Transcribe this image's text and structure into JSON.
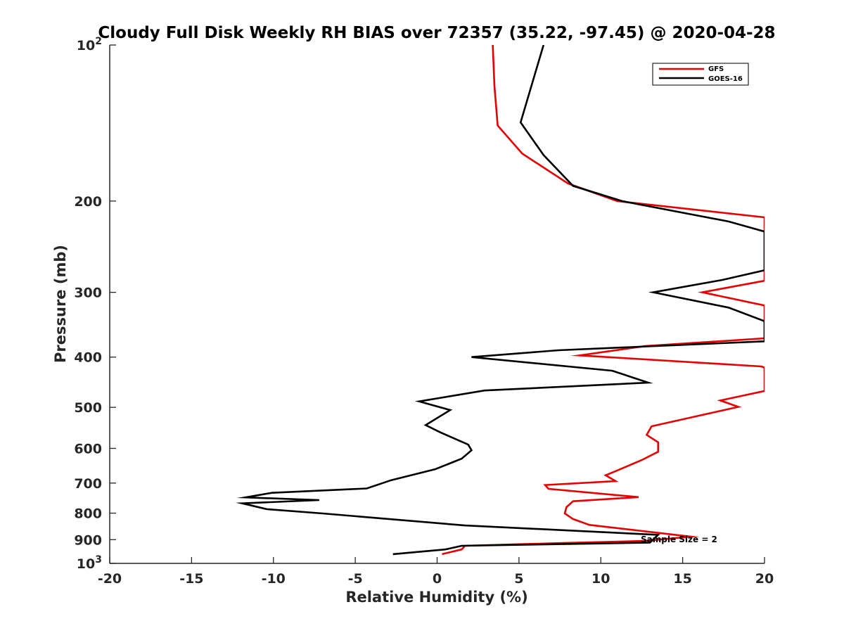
{
  "chart_data": {
    "type": "line",
    "title": "Cloudy Full Disk Weekly RH BIAS over 72357 (35.22, -97.45) @ 2020-04-28",
    "xlabel": "Relative Humidity (%)",
    "ylabel": "Pressure (mb)",
    "xlim": [
      -20,
      20
    ],
    "ylim": [
      100,
      1000
    ],
    "y_scale": "log",
    "y_reversed": true,
    "x_ticks": [
      "-20",
      "-15",
      "-10",
      "-5",
      "0",
      "5",
      "10",
      "15",
      "20"
    ],
    "y_ticks": [
      {
        "value": 100,
        "base": "10",
        "exp": "2"
      },
      {
        "value": 200,
        "base": "200",
        "exp": ""
      },
      {
        "value": 300,
        "base": "300",
        "exp": ""
      },
      {
        "value": 400,
        "base": "400",
        "exp": ""
      },
      {
        "value": 500,
        "base": "500",
        "exp": ""
      },
      {
        "value": 600,
        "base": "600",
        "exp": ""
      },
      {
        "value": 700,
        "base": "700",
        "exp": ""
      },
      {
        "value": 800,
        "base": "800",
        "exp": ""
      },
      {
        "value": 900,
        "base": "900",
        "exp": ""
      },
      {
        "value": 1000,
        "base": "10",
        "exp": "3"
      }
    ],
    "grid": false,
    "legend_position": "top-right",
    "annotation": "Sample Size = 2",
    "series": [
      {
        "name": "GFS",
        "color": "#e60000",
        "points": [
          [
            3.4,
            100
          ],
          [
            3.5,
            120
          ],
          [
            3.7,
            143
          ],
          [
            5.2,
            162
          ],
          [
            8.0,
            185
          ],
          [
            11.0,
            200
          ],
          [
            20.0,
            215
          ],
          [
            20.0,
            285
          ],
          [
            16.2,
            300
          ],
          [
            20.0,
            318
          ],
          [
            20.0,
            368
          ],
          [
            12.7,
            381
          ],
          [
            8.7,
            397
          ],
          [
            19.8,
            417
          ],
          [
            20.0,
            419
          ],
          [
            20.0,
            465
          ],
          [
            17.3,
            485
          ],
          [
            18.4,
            499
          ],
          [
            13.1,
            544
          ],
          [
            12.8,
            565
          ],
          [
            13.5,
            584
          ],
          [
            13.5,
            609
          ],
          [
            12.5,
            632
          ],
          [
            10.9,
            664
          ],
          [
            10.3,
            676
          ],
          [
            10.9,
            694
          ],
          [
            6.6,
            706
          ],
          [
            6.8,
            718
          ],
          [
            12.3,
            745
          ],
          [
            8.3,
            759
          ],
          [
            7.9,
            779
          ],
          [
            7.8,
            801
          ],
          [
            8.3,
            821
          ],
          [
            9.3,
            843
          ],
          [
            15.5,
            888
          ],
          [
            12.7,
            905
          ],
          [
            7.9,
            913
          ],
          [
            1.7,
            925
          ],
          [
            1.5,
            940
          ],
          [
            0.3,
            960
          ]
        ]
      },
      {
        "name": "GOES-16",
        "color": "#000000",
        "points": [
          [
            6.5,
            100
          ],
          [
            5.1,
            141
          ],
          [
            6.5,
            163
          ],
          [
            8.3,
            187
          ],
          [
            11.3,
            200
          ],
          [
            17.8,
            219
          ],
          [
            20.0,
            229
          ],
          [
            20.0,
            272
          ],
          [
            17.4,
            284
          ],
          [
            13.2,
            300
          ],
          [
            17.8,
            321
          ],
          [
            20.0,
            341
          ],
          [
            20.0,
            373
          ],
          [
            7.4,
            388
          ],
          [
            2.1,
            400
          ],
          [
            10.7,
            425
          ],
          [
            12.9,
            448
          ],
          [
            2.9,
            464
          ],
          [
            -1.1,
            487
          ],
          [
            0.8,
            506
          ],
          [
            -0.7,
            541
          ],
          [
            0.2,
            559
          ],
          [
            1.9,
            590
          ],
          [
            2.1,
            605
          ],
          [
            1.5,
            628
          ],
          [
            -0.1,
            658
          ],
          [
            -2.8,
            691
          ],
          [
            -4.3,
            717
          ],
          [
            -10.1,
            731
          ],
          [
            -11.7,
            746
          ],
          [
            -7.2,
            755
          ],
          [
            -11.9,
            766
          ],
          [
            -10.4,
            786
          ],
          [
            -7.0,
            801
          ],
          [
            1.7,
            845
          ],
          [
            13.5,
            881
          ],
          [
            13.0,
            912
          ],
          [
            1.5,
            925
          ],
          [
            0.5,
            940
          ],
          [
            -2.7,
            960
          ]
        ]
      }
    ]
  }
}
